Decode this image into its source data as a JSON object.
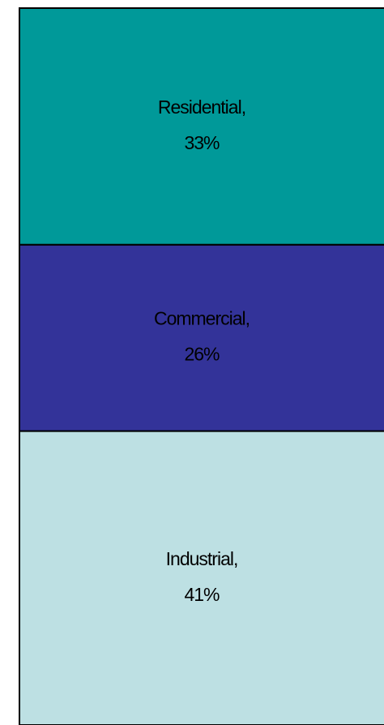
{
  "chart_data": {
    "type": "bar",
    "stacked": true,
    "categories": [
      null
    ],
    "series": [
      {
        "name": "Industrial,",
        "color": "#bde0e3",
        "values": [
          41
        ],
        "value_labels": [
          "41%"
        ]
      },
      {
        "name": "Commercial,",
        "color": "#333399",
        "values": [
          26
        ],
        "value_labels": [
          "26%"
        ]
      },
      {
        "name": "Residential,",
        "color": "#009999",
        "values": [
          33
        ],
        "value_labels": [
          "33%"
        ]
      }
    ],
    "ylim": [
      0,
      100
    ]
  }
}
